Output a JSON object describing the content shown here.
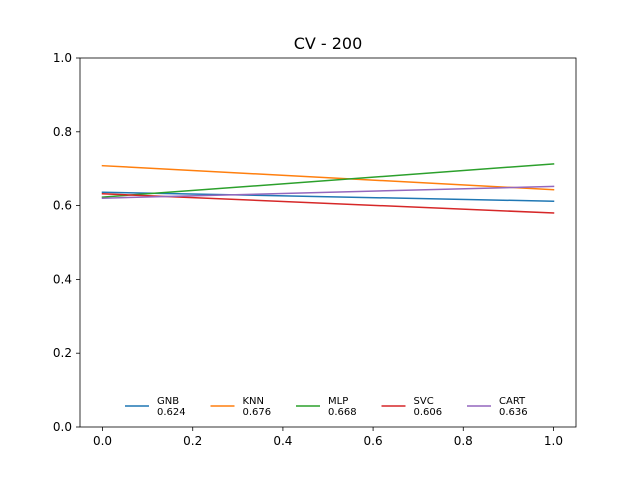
{
  "chart_data": {
    "type": "line",
    "title": "CV - 200",
    "xlabel": "",
    "ylabel": "",
    "xlim": [
      -0.05,
      1.05
    ],
    "ylim": [
      0.0,
      1.0
    ],
    "x_ticks": [
      "0.0",
      "0.2",
      "0.4",
      "0.6",
      "0.8",
      "1.0"
    ],
    "y_ticks": [
      "0.0",
      "0.2",
      "0.4",
      "0.6",
      "0.8",
      "1.0"
    ],
    "grid": false,
    "legend_position": "lower-center",
    "series": [
      {
        "name": "GNB",
        "score": "0.624",
        "color": "#1f77b4",
        "x": [
          0.0,
          1.0
        ],
        "y": [
          0.636,
          0.612
        ]
      },
      {
        "name": "KNN",
        "score": "0.676",
        "color": "#ff7f0e",
        "x": [
          0.0,
          1.0
        ],
        "y": [
          0.708,
          0.643
        ]
      },
      {
        "name": "MLP",
        "score": "0.668",
        "color": "#2ca02c",
        "x": [
          0.0,
          1.0
        ],
        "y": [
          0.623,
          0.713
        ]
      },
      {
        "name": "SVC",
        "score": "0.606",
        "color": "#d62728",
        "x": [
          0.0,
          1.0
        ],
        "y": [
          0.632,
          0.58
        ]
      },
      {
        "name": "CART",
        "score": "0.636",
        "color": "#9467bd",
        "x": [
          0.0,
          1.0
        ],
        "y": [
          0.62,
          0.652
        ]
      }
    ]
  }
}
